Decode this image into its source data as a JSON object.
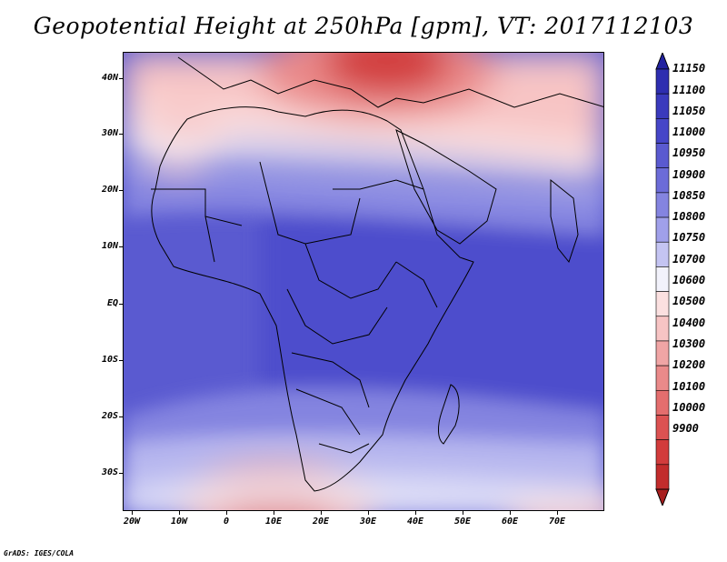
{
  "title": "Geopotential Height at 250hPa [gpm], VT: 2017112103",
  "credit": "GrADS: IGES/COLA",
  "map": {
    "lat_labels": [
      "40N",
      "30N",
      "20N",
      "10N",
      "EQ",
      "10S",
      "20S",
      "30S"
    ],
    "lon_labels": [
      "20W",
      "10W",
      "0",
      "10E",
      "20E",
      "30E",
      "40E",
      "50E",
      "60E",
      "70E"
    ]
  },
  "colorbar": {
    "levels": [
      "11150",
      "11100",
      "11050",
      "11000",
      "10950",
      "10900",
      "10850",
      "10800",
      "10750",
      "10700",
      "10600",
      "10500",
      "10400",
      "10300",
      "10200",
      "10100",
      "10000",
      "9900"
    ],
    "colors": [
      "#2222a0",
      "#2e2eb0",
      "#3a3abd",
      "#4646c8",
      "#5a5ad0",
      "#6c6cd8",
      "#8484e0",
      "#a0a0ea",
      "#c4c4f2",
      "#f2f2fb",
      "#fbe0e0",
      "#f7c4c4",
      "#f0a5a5",
      "#ea8a8a",
      "#e46e6e",
      "#dc5252",
      "#d23c3c",
      "#c22c2c",
      "#a81e1e"
    ]
  }
}
